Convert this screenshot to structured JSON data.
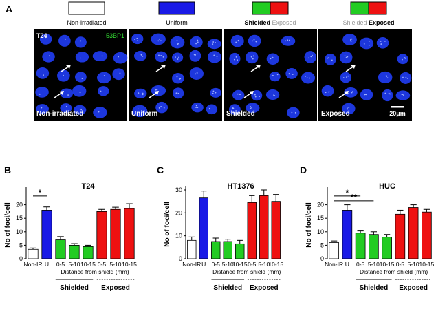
{
  "colors": {
    "white_bar": "#ffffff",
    "uniform": "#1a1ae6",
    "shielded": "#22cc22",
    "exposed": "#ee1111",
    "micrograph_bg": "#000000",
    "nucleus": "#1f3cf0",
    "foci_label": "#33dd33"
  },
  "panel_a": {
    "letter": "A",
    "legend": [
      {
        "label": "Non-irradiated",
        "style": "plain",
        "swatch": [
          "#ffffff"
        ]
      },
      {
        "label": "Uniform",
        "style": "plain",
        "swatch": [
          "#1a1ae6"
        ]
      },
      {
        "label_bold": "Shielded",
        "label_gray": "Exposed",
        "swatch": [
          "#22cc22",
          "#ee1111"
        ]
      },
      {
        "label_gray": "Shielded",
        "label_bold": "Exposed",
        "swatch": [
          "#22cc22",
          "#ee1111"
        ]
      }
    ],
    "micrographs": [
      {
        "caption": "Non-irradiated",
        "cell_line": "T24",
        "stain": "53BP1"
      },
      {
        "caption": "Uniform"
      },
      {
        "caption": "Shielded"
      },
      {
        "caption": "Exposed",
        "scale_bar": "20μm"
      }
    ]
  },
  "chart_data": [
    {
      "type": "bar",
      "panel": "B",
      "title": "T24",
      "ylabel": "No of foci/cell",
      "xlabel": "Distance from shield (mm)",
      "ylim": [
        0,
        25
      ],
      "yticks": [
        0,
        5,
        10,
        15,
        20
      ],
      "categories": [
        "Non-IR",
        "U",
        "0-5",
        "5-10",
        "10-15",
        "0-5",
        "5-10",
        "10-15"
      ],
      "groups": [
        "control",
        "uniform",
        "shielded",
        "shielded",
        "shielded",
        "exposed",
        "exposed",
        "exposed"
      ],
      "values": [
        3.5,
        18.0,
        7.0,
        5.0,
        4.5,
        17.5,
        18.3,
        18.6
      ],
      "errors": [
        0.5,
        1.2,
        1.2,
        0.6,
        0.5,
        0.8,
        0.8,
        1.8
      ],
      "significance": [
        {
          "from": 0,
          "to": 1,
          "label": "*"
        }
      ],
      "group_labels": {
        "shielded": "Shielded",
        "exposed": "Exposed"
      }
    },
    {
      "type": "bar",
      "panel": "C",
      "title": "HT1376",
      "ylabel": "No of foci/cell",
      "xlabel": "Distance from shield (mm)",
      "ylim": [
        0,
        30
      ],
      "yticks": [
        0,
        10,
        20,
        30
      ],
      "categories": [
        "Non-IR",
        "U",
        "0-5",
        "5-10",
        "10-15",
        "0-5",
        "5-10",
        "10-15"
      ],
      "groups": [
        "control",
        "uniform",
        "shielded",
        "shielded",
        "shielded",
        "exposed",
        "exposed",
        "exposed"
      ],
      "values": [
        8.0,
        26.5,
        7.5,
        7.5,
        6.5,
        24.5,
        27.5,
        25.0
      ],
      "errors": [
        1.5,
        3.0,
        1.5,
        1.0,
        1.5,
        3.0,
        2.5,
        3.0
      ],
      "significance": [],
      "group_labels": {
        "shielded": "Shielded",
        "exposed": "Exposed"
      }
    },
    {
      "type": "bar",
      "panel": "D",
      "title": "HUC",
      "ylabel": "No of foci/cell",
      "xlabel": "Distance from shield (mm)",
      "ylim": [
        0,
        25
      ],
      "yticks": [
        0,
        5,
        10,
        15,
        20
      ],
      "categories": [
        "Non-IR",
        "U",
        "0-5",
        "5-10",
        "10-15",
        "0-5",
        "5-10",
        "10-15"
      ],
      "groups": [
        "control",
        "uniform",
        "shielded",
        "shielded",
        "shielded",
        "exposed",
        "exposed",
        "exposed"
      ],
      "values": [
        6.0,
        18.0,
        9.5,
        9.0,
        8.0,
        16.5,
        19.0,
        17.3
      ],
      "errors": [
        0.6,
        2.0,
        0.8,
        1.0,
        1.0,
        1.5,
        1.0,
        1.0
      ],
      "significance": [
        {
          "from": 0,
          "to": 2,
          "label": "*"
        },
        {
          "from": 0,
          "to": 3,
          "label": "**"
        }
      ],
      "group_labels": {
        "shielded": "Shielded",
        "exposed": "Exposed"
      }
    }
  ]
}
